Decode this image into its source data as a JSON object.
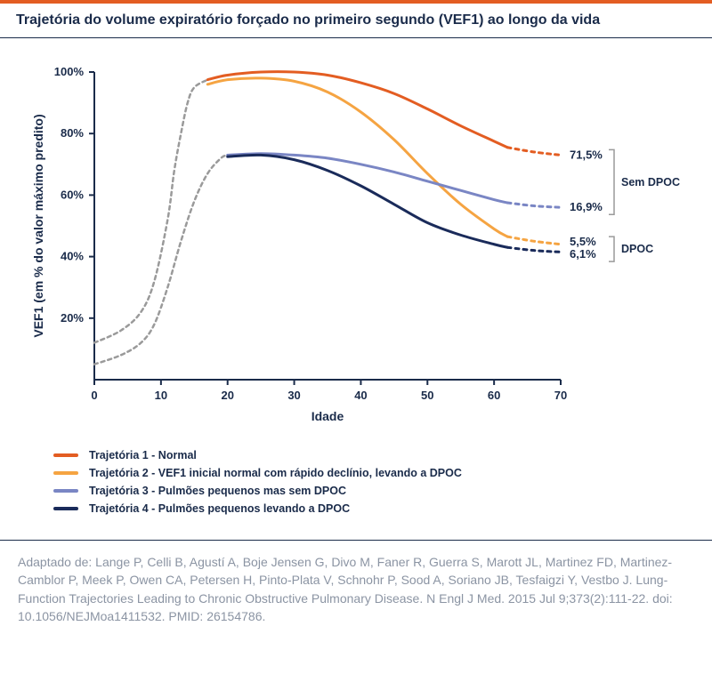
{
  "title": "Trajetória do volume expiratório forçado no primeiro segundo (VEF1) ao longo da vida",
  "title_fontsize": 16,
  "chart": {
    "type": "line",
    "background_color": "#ffffff",
    "axis_color": "#1a2b4a",
    "x": {
      "label": "Idade",
      "min": 0,
      "max": 70,
      "ticks": [
        0,
        10,
        20,
        30,
        40,
        50,
        60,
        70
      ],
      "label_fontsize": 14,
      "tick_fontsize": 13
    },
    "y": {
      "label": "VEF1 (em % do valor máximo predito)",
      "min": 0,
      "max": 100,
      "ticks": [
        20,
        40,
        60,
        80,
        100
      ],
      "tick_suffix": "%",
      "label_fontsize": 14,
      "tick_fontsize": 13
    },
    "growth_curves": {
      "color": "#9a9a9a",
      "dash": "4 4",
      "line_width": 2.5,
      "upper": [
        [
          0,
          12
        ],
        [
          4,
          16
        ],
        [
          7,
          22
        ],
        [
          9,
          32
        ],
        [
          11,
          52
        ],
        [
          12,
          68
        ],
        [
          13,
          80
        ],
        [
          14,
          90
        ],
        [
          15,
          95
        ],
        [
          17,
          97.5
        ]
      ],
      "lower": [
        [
          0,
          5
        ],
        [
          4,
          8
        ],
        [
          7,
          12
        ],
        [
          9,
          18
        ],
        [
          11,
          30
        ],
        [
          13,
          45
        ],
        [
          15,
          58
        ],
        [
          17,
          67
        ],
        [
          19,
          72
        ],
        [
          20,
          73
        ]
      ]
    },
    "series": [
      {
        "id": "t1",
        "label": "Trajetória 1 - Normal",
        "color": "#e35d22",
        "line_width": 3,
        "solid": [
          [
            17,
            97.5
          ],
          [
            20,
            99
          ],
          [
            25,
            100
          ],
          [
            30,
            100
          ],
          [
            35,
            99
          ],
          [
            40,
            96.5
          ],
          [
            45,
            93
          ],
          [
            50,
            88
          ],
          [
            55,
            82.5
          ],
          [
            60,
            77.5
          ],
          [
            62,
            75.5
          ]
        ],
        "dashed": [
          [
            62,
            75.5
          ],
          [
            66,
            74
          ],
          [
            70,
            73
          ]
        ],
        "end_label": "71,5%",
        "end_group": "sem"
      },
      {
        "id": "t2",
        "label": "Trajetória 2 - VEF1 inicial normal com rápido declínio, levando a DPOC",
        "color": "#f5a442",
        "line_width": 3,
        "solid": [
          [
            17,
            96
          ],
          [
            20,
            97.5
          ],
          [
            25,
            98
          ],
          [
            30,
            97
          ],
          [
            35,
            93.5
          ],
          [
            40,
            87
          ],
          [
            45,
            78
          ],
          [
            50,
            67
          ],
          [
            55,
            57
          ],
          [
            60,
            49
          ],
          [
            62,
            46.5
          ]
        ],
        "dashed": [
          [
            62,
            46.5
          ],
          [
            66,
            45
          ],
          [
            70,
            44
          ]
        ],
        "end_label": "5,5%",
        "end_group": "dpoc"
      },
      {
        "id": "t3",
        "label": "Trajetória 3 - Pulmões pequenos mas sem DPOC",
        "color": "#7a86c4",
        "line_width": 3,
        "solid": [
          [
            20,
            73
          ],
          [
            25,
            73.5
          ],
          [
            30,
            73
          ],
          [
            35,
            72
          ],
          [
            40,
            70
          ],
          [
            45,
            67.5
          ],
          [
            50,
            64.5
          ],
          [
            55,
            61.5
          ],
          [
            60,
            58.5
          ],
          [
            62,
            57.5
          ]
        ],
        "dashed": [
          [
            62,
            57.5
          ],
          [
            66,
            56.5
          ],
          [
            70,
            56
          ]
        ],
        "end_label": "16,9%",
        "end_group": "sem"
      },
      {
        "id": "t4",
        "label": "Trajetória 4 - Pulmões pequenos levando a DPOC",
        "color": "#1a2b5a",
        "line_width": 3,
        "solid": [
          [
            20,
            72.5
          ],
          [
            25,
            73
          ],
          [
            30,
            71.5
          ],
          [
            35,
            68
          ],
          [
            40,
            63
          ],
          [
            45,
            57
          ],
          [
            50,
            51
          ],
          [
            55,
            47
          ],
          [
            60,
            44
          ],
          [
            62,
            43
          ]
        ],
        "dashed": [
          [
            62,
            43
          ],
          [
            66,
            42
          ],
          [
            70,
            41.5
          ]
        ],
        "end_label": "6,1%",
        "end_group": "dpoc"
      }
    ],
    "group_labels": {
      "sem": "Sem DPOC",
      "dpoc": "DPOC"
    },
    "bracket_color": "#9a9a9a"
  },
  "legend_fontsize": 12.5,
  "citation": "Adaptado de: Lange P, Celli B, Agustí A, Boje Jensen G, Divo M, Faner R, Guerra S, Marott JL, Martinez FD, Martinez-Camblor P, Meek P, Owen CA, Petersen H, Pinto-Plata V, Schnohr P, Sood A, Soriano JB, Tesfaigzi Y, Vestbo J. Lung-Function Trajectories Leading to Chronic Obstructive Pulmonary Disease. N Engl J Med. 2015 Jul 9;373(2):111-22. doi: 10.1056/NEJMoa1411532. PMID: 26154786.",
  "citation_fontsize": 14
}
